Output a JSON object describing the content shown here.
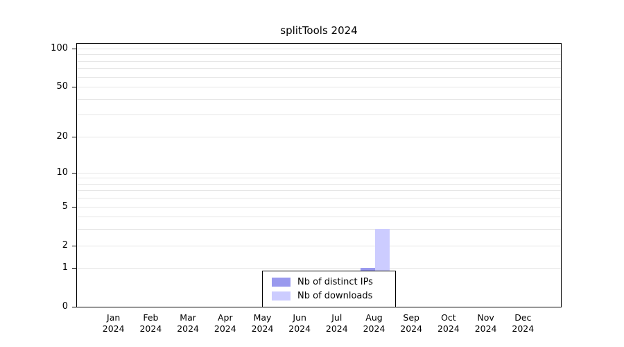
{
  "title": "splitTools 2024",
  "chart_data": {
    "type": "bar",
    "title": "splitTools 2024",
    "scale": "log1p",
    "grid": true,
    "legend_position": "bottom-center-inside",
    "categories": [
      "Jan",
      "Feb",
      "Mar",
      "Apr",
      "May",
      "Jun",
      "Jul",
      "Aug",
      "Sep",
      "Oct",
      "Nov",
      "Dec"
    ],
    "year": "2024",
    "series": [
      {
        "name": "Nb of distinct IPs",
        "color": "#9999ee",
        "values": [
          0,
          0,
          0,
          0,
          0,
          0,
          0,
          1,
          0,
          0,
          0,
          0
        ]
      },
      {
        "name": "Nb of downloads",
        "color": "#ccccff",
        "values": [
          0,
          0,
          0,
          0,
          0,
          0,
          0,
          3,
          0,
          0,
          0,
          0
        ]
      }
    ],
    "y_ticks": [
      0,
      1,
      2,
      5,
      10,
      20,
      50,
      100
    ],
    "gridline_values": [
      1,
      2,
      3,
      4,
      5,
      6,
      7,
      8,
      9,
      10,
      20,
      30,
      40,
      50,
      60,
      70,
      80,
      90,
      100
    ],
    "ylim": [
      0,
      110
    ]
  }
}
